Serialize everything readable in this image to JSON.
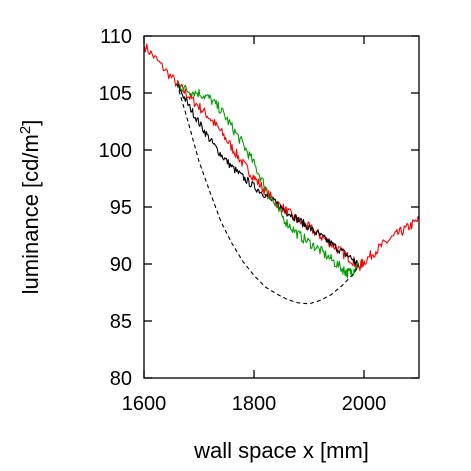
{
  "chart_data": {
    "type": "line",
    "xlabel": "wall space x [mm]",
    "ylabel": {
      "main": "luminance [cd/m",
      "sup": "2",
      "tail": "]"
    },
    "xlim": [
      1600,
      2100
    ],
    "ylim": [
      80,
      110
    ],
    "x_ticks": [
      1600,
      1800,
      2000
    ],
    "y_ticks": [
      80,
      85,
      90,
      95,
      100,
      105,
      110
    ],
    "grid": false,
    "legend": "none",
    "series": [
      {
        "color": "#ff0000",
        "dash": "solid",
        "noise": 0.45,
        "x": [
          1600,
          1630,
          1660,
          1680,
          1700,
          1720,
          1740,
          1760,
          1780,
          1800,
          1820,
          1840,
          1860,
          1880,
          1900,
          1920,
          1940,
          1960,
          1980,
          1990,
          2000,
          2020,
          2040,
          2060,
          2080,
          2100
        ],
        "y": [
          109.2,
          107.5,
          105.8,
          104.8,
          103.8,
          102.8,
          101.6,
          100.2,
          98.8,
          97.6,
          96.4,
          95.4,
          94.6,
          93.8,
          93.2,
          92.5,
          91.8,
          91.0,
          90.3,
          89.7,
          90.2,
          91.1,
          91.9,
          92.6,
          93.2,
          93.9
        ]
      },
      {
        "color": "#000000",
        "dash": "solid",
        "noise": 0.35,
        "x": [
          1660,
          1680,
          1700,
          1720,
          1740,
          1760,
          1780,
          1800,
          1820,
          1840,
          1860,
          1880,
          1900,
          1920,
          1940,
          1960,
          1980,
          1990
        ],
        "y": [
          105.8,
          104.0,
          102.4,
          100.9,
          99.6,
          98.5,
          97.6,
          96.8,
          96.1,
          95.3,
          94.6,
          93.9,
          93.2,
          92.5,
          91.8,
          91.1,
          90.4,
          89.8
        ]
      },
      {
        "color": "#00a000",
        "dash": "solid",
        "noise": 0.45,
        "x": [
          1660,
          1680,
          1700,
          1720,
          1740,
          1760,
          1780,
          1800,
          1820,
          1840,
          1860,
          1880,
          1900,
          1920,
          1940,
          1960,
          1970,
          1980,
          1990
        ],
        "y": [
          105.8,
          105.2,
          105.0,
          104.5,
          103.5,
          102.0,
          100.5,
          98.8,
          96.8,
          95.0,
          93.6,
          92.6,
          91.9,
          91.2,
          90.4,
          89.6,
          89.2,
          89.4,
          90.0
        ]
      },
      {
        "color": "#000000",
        "dash": "dashed",
        "noise": 0,
        "x": [
          1660,
          1680,
          1700,
          1720,
          1740,
          1760,
          1780,
          1800,
          1820,
          1840,
          1860,
          1880,
          1900,
          1920,
          1940,
          1960,
          1980,
          1990
        ],
        "y": [
          105.8,
          102.5,
          99.0,
          96.3,
          93.7,
          91.8,
          90.2,
          89.0,
          88.0,
          87.4,
          86.9,
          86.6,
          86.5,
          86.8,
          87.3,
          88.1,
          89.1,
          89.8
        ]
      }
    ]
  }
}
